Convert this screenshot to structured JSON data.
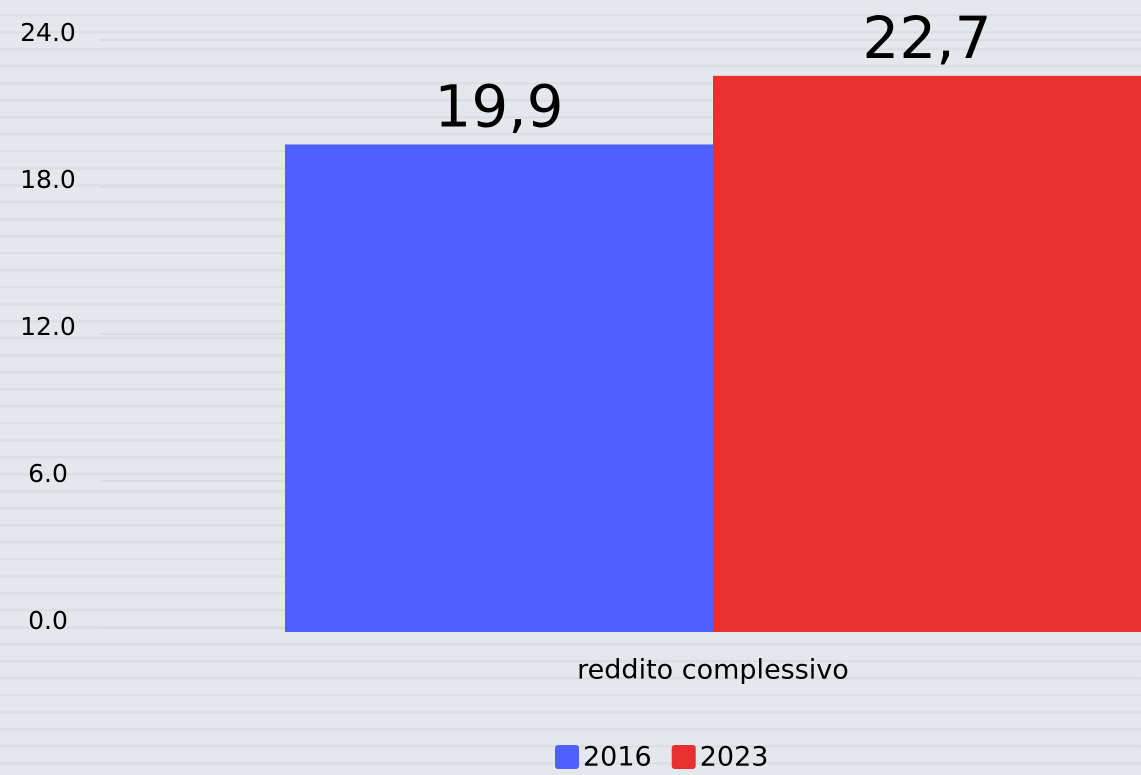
{
  "chart_data": {
    "type": "bar",
    "categories": [
      "reddito complessivo"
    ],
    "series": [
      {
        "name": "2016",
        "color": "#5060ff",
        "values": [
          19.9
        ],
        "value_labels": [
          "19,9"
        ]
      },
      {
        "name": "2023",
        "color": "#e83030",
        "values": [
          22.7
        ],
        "value_labels": [
          "22,7"
        ]
      }
    ],
    "ylim": [
      0,
      24
    ],
    "yticks": [
      {
        "value": 0,
        "label": "0.0"
      },
      {
        "value": 6,
        "label": "6.0"
      },
      {
        "value": 12,
        "label": "12.0"
      },
      {
        "value": 18,
        "label": "18.0"
      },
      {
        "value": 24,
        "label": "24.0"
      }
    ],
    "grid": true
  }
}
